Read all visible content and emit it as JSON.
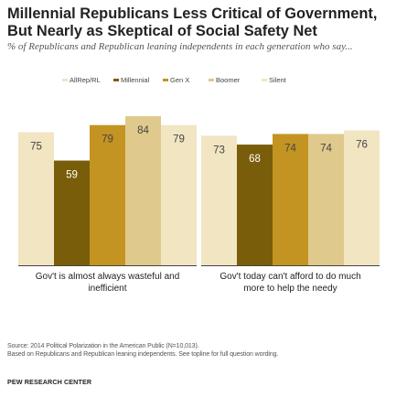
{
  "title": "Millennial Republicans Less Critical of Government, But Nearly as Skeptical of Social Safety Net",
  "subtitle": "% of Republicans and Republican leaning independents in each generation who say...",
  "notes": {
    "source": "Source: 2014 Political Polarization in the American Public (N=10,013).",
    "basis": "Based on Republicans and Republican leaning independents. See topline for full question wording."
  },
  "org": "PEW RESEARCH CENTER",
  "colors": {
    "AllRep/RL": "#f2e5c2",
    "Millennial": "#7a5d0a",
    "Gen X": "#c39422",
    "Boomer": "#e0c98c",
    "Silent": "#f2e5c2",
    "baseline": "#444444",
    "label_light": "#ffffff",
    "label_dark": "#444444"
  },
  "chart_data": {
    "type": "bar",
    "categories": [
      "Gov't is almost always wasteful and inefficient",
      "Gov't today can't afford to do much more to help the needy"
    ],
    "series": [
      {
        "name": "AllRep/RL",
        "values": [
          75,
          73
        ]
      },
      {
        "name": "Millennial",
        "values": [
          59,
          68
        ]
      },
      {
        "name": "Gen X",
        "values": [
          79,
          74
        ]
      },
      {
        "name": "Boomer",
        "values": [
          84,
          74
        ]
      },
      {
        "name": "Silent",
        "values": [
          79,
          76
        ]
      }
    ],
    "ylim": [
      0,
      100
    ],
    "grid": false,
    "legend_position": "top",
    "xlabel": "",
    "ylabel": ""
  }
}
